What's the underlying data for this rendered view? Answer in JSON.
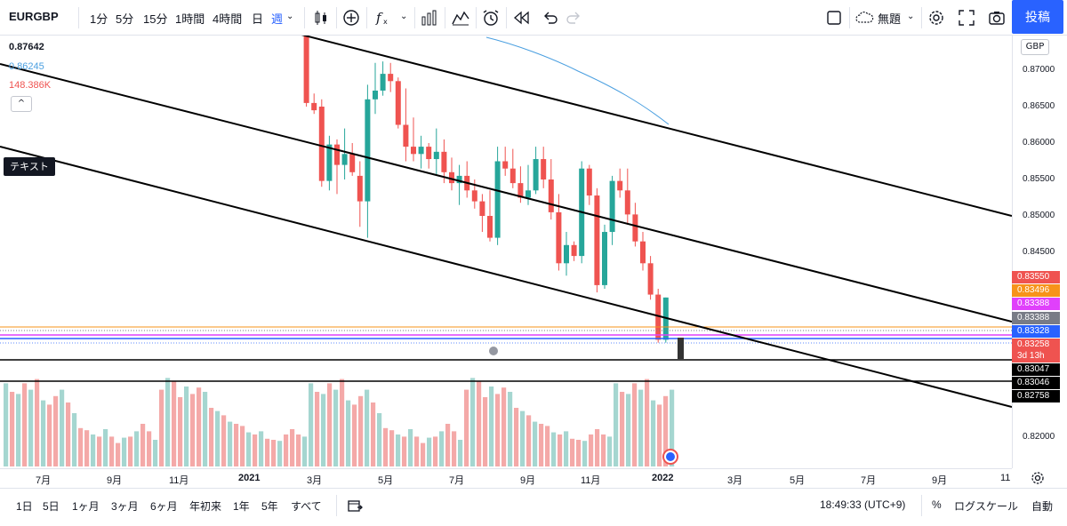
{
  "toolbar": {
    "symbol": "EURGBP",
    "intervals": [
      "1分",
      "5分",
      "15分",
      "1時間",
      "4時間",
      "日",
      "週"
    ],
    "active_interval": "週",
    "layout_name": "無題",
    "post_label": "投稿"
  },
  "legend": {
    "price": "0.87642",
    "ma_value": "0.86245",
    "volume": "148.386K",
    "collapse_glyph": "^",
    "text_tool_label": "テキスト"
  },
  "price_scale": {
    "currency": "GBP",
    "ticks": [
      "0.87000",
      "0.86500",
      "0.86000",
      "0.85500",
      "0.85000",
      "0.84500",
      "0.82000"
    ],
    "labels": [
      {
        "text": "0.83550",
        "color": "#ef5350"
      },
      {
        "text": "0.83496",
        "color": "#f7931a"
      },
      {
        "text": "0.83388",
        "color": "#e040fb"
      },
      {
        "text": "0.83388",
        "color": "#787b86"
      },
      {
        "text": "0.83328",
        "color": "#2962ff"
      },
      {
        "text": "0.83258",
        "color": "#ef5350"
      },
      {
        "text": "3d 13h",
        "color": "#ef5350"
      },
      {
        "text": "0.83047",
        "color": "#000000"
      },
      {
        "text": "0.83046",
        "color": "#000000"
      },
      {
        "text": "0.82758",
        "color": "#000000"
      }
    ]
  },
  "time_axis": {
    "labels": [
      "7月",
      "9月",
      "11月",
      "2021",
      "3月",
      "5月",
      "7月",
      "9月",
      "11月",
      "2022",
      "3月",
      "5月",
      "7月",
      "9月",
      "11"
    ]
  },
  "bottom": {
    "ranges": [
      "1日",
      "5日",
      "1ヶ月",
      "3ヶ月",
      "6ヶ月",
      "年初来",
      "1年",
      "5年",
      "すべて"
    ],
    "clock": "18:49:33 (UTC+9)",
    "percent": "%",
    "log_scale": "ログスケール",
    "auto": "自動"
  },
  "colors": {
    "up": "#26a69a",
    "down": "#ef5350",
    "vol_up": "#a5d6d0",
    "vol_down": "#f4a9a8",
    "ma": "#4a9fe0",
    "accent": "#2962ff"
  },
  "chart_data": {
    "type": "candlestick",
    "price_axis_ticks": [
      0.87,
      0.865,
      0.86,
      0.855,
      0.85,
      0.845,
      0.82
    ],
    "candles_ohlc": [
      [
        0.9,
        0.9,
        0.876,
        0.8765
      ],
      [
        0.876,
        0.876,
        0.865,
        0.8655
      ],
      [
        0.8655,
        0.8668,
        0.864,
        0.8645
      ],
      [
        0.865,
        0.866,
        0.854,
        0.8548
      ],
      [
        0.8548,
        0.861,
        0.8535,
        0.8598
      ],
      [
        0.8598,
        0.8605,
        0.853,
        0.857
      ],
      [
        0.857,
        0.862,
        0.855,
        0.8585
      ],
      [
        0.8585,
        0.86,
        0.8555,
        0.856
      ],
      [
        0.8555,
        0.8575,
        0.8485,
        0.852
      ],
      [
        0.852,
        0.868,
        0.847,
        0.866
      ],
      [
        0.866,
        0.871,
        0.864,
        0.8672
      ],
      [
        0.8672,
        0.8712,
        0.8665,
        0.8695
      ],
      [
        0.8695,
        0.871,
        0.867,
        0.8685
      ],
      [
        0.8685,
        0.869,
        0.862,
        0.8625
      ],
      [
        0.8625,
        0.8675,
        0.8575,
        0.8595
      ],
      [
        0.8595,
        0.8635,
        0.8575,
        0.8585
      ],
      [
        0.8585,
        0.861,
        0.8565,
        0.8595
      ],
      [
        0.8595,
        0.86,
        0.8565,
        0.8578
      ],
      [
        0.8578,
        0.862,
        0.8555,
        0.8588
      ],
      [
        0.8588,
        0.8605,
        0.8545,
        0.856
      ],
      [
        0.856,
        0.858,
        0.8535,
        0.8545
      ],
      [
        0.8545,
        0.857,
        0.8515,
        0.8555
      ],
      [
        0.8555,
        0.8575,
        0.8525,
        0.8535
      ],
      [
        0.8535,
        0.855,
        0.851,
        0.852
      ],
      [
        0.852,
        0.853,
        0.8478,
        0.85
      ],
      [
        0.85,
        0.8535,
        0.8465,
        0.847
      ],
      [
        0.847,
        0.8595,
        0.846,
        0.8575
      ],
      [
        0.8575,
        0.8595,
        0.8555,
        0.8565
      ],
      [
        0.8565,
        0.8592,
        0.8538,
        0.8545
      ],
      [
        0.8545,
        0.8568,
        0.8518,
        0.8525
      ],
      [
        0.8525,
        0.857,
        0.8515,
        0.8535
      ],
      [
        0.8535,
        0.8595,
        0.853,
        0.8578
      ],
      [
        0.8578,
        0.8595,
        0.8538,
        0.855
      ],
      [
        0.855,
        0.8578,
        0.8495,
        0.8505
      ],
      [
        0.8505,
        0.853,
        0.8425,
        0.8435
      ],
      [
        0.8435,
        0.8478,
        0.8418,
        0.846
      ],
      [
        0.846,
        0.8465,
        0.8438,
        0.8445
      ],
      [
        0.8445,
        0.8575,
        0.8435,
        0.8565
      ],
      [
        0.8565,
        0.857,
        0.8515,
        0.8528
      ],
      [
        0.8528,
        0.8538,
        0.8395,
        0.8405
      ],
      [
        0.8405,
        0.8488,
        0.84,
        0.8478
      ],
      [
        0.8478,
        0.8555,
        0.846,
        0.8548
      ],
      [
        0.8548,
        0.8565,
        0.8525,
        0.8535
      ],
      [
        0.8535,
        0.8565,
        0.8488,
        0.8502
      ],
      [
        0.8502,
        0.8518,
        0.8458,
        0.8465
      ],
      [
        0.8465,
        0.8478,
        0.8425,
        0.8435
      ],
      [
        0.8435,
        0.8445,
        0.8385,
        0.8392
      ],
      [
        0.8392,
        0.84,
        0.8326,
        0.833
      ],
      [
        0.833,
        0.8388,
        0.8326,
        0.8388
      ]
    ],
    "volume_up": [
      true,
      false,
      true,
      false,
      true,
      false,
      true,
      false,
      false,
      true,
      false,
      true,
      false,
      false,
      true,
      false,
      true,
      false,
      false,
      true,
      false,
      true,
      false,
      false,
      true,
      false,
      true,
      false,
      false,
      true,
      false,
      false,
      true,
      false,
      true,
      false,
      true,
      false,
      false,
      true,
      false,
      true,
      false,
      false,
      true,
      false,
      false,
      false,
      true
    ],
    "volume_relative": [
      0.78,
      0.72,
      0.7,
      0.83,
      0.68,
      0.8,
      0.78,
      0.65,
      0.72,
      0.75,
      0.82,
      0.68,
      0.62,
      0.74,
      0.58,
      0.7,
      0.66,
      0.55,
      0.72,
      0.52,
      0.6,
      0.48,
      0.5,
      0.42,
      0.36,
      0.4,
      0.34,
      0.38,
      0.3,
      0.32,
      0.28,
      0.3,
      0.35,
      0.33,
      0.28,
      0.26,
      0.22,
      0.25,
      0.27,
      0.24,
      0.28,
      0.3,
      0.33,
      0.35,
      0.4,
      0.3,
      0.33,
      0.28,
      0.25
    ],
    "horizontal_levels": [
      0.83496,
      0.83388,
      0.83328,
      0.83047,
      0.83046
    ],
    "time_labels": [
      "7月",
      "9月",
      "11月",
      "2021",
      "3月",
      "5月",
      "7月",
      "9月",
      "11月",
      "2022",
      "3月",
      "5月",
      "7月",
      "9月",
      "11"
    ]
  }
}
